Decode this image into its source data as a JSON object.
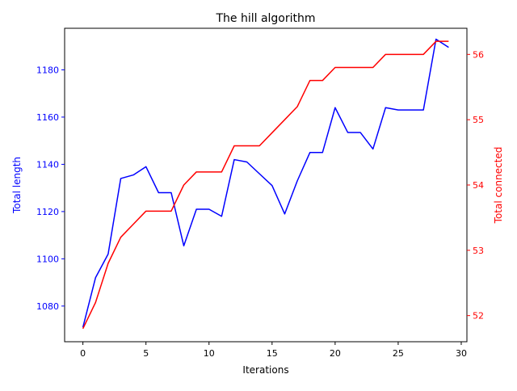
{
  "chart_data": {
    "type": "line",
    "title": "The hill algorithm",
    "xlabel": "Iterations",
    "ylabel_left": "Total length",
    "ylabel_right": "Total connected",
    "xlim": [
      -1.45,
      30.45
    ],
    "ylim_left": [
      1064.9,
      1197.6
    ],
    "ylim_right": [
      51.6,
      56.4
    ],
    "x_ticks": [
      0,
      5,
      10,
      15,
      20,
      25,
      30
    ],
    "y_left_ticks": [
      1080,
      1100,
      1120,
      1140,
      1160,
      1180
    ],
    "y_right_ticks": [
      52,
      53,
      54,
      55,
      56
    ],
    "grid": false,
    "x": [
      0,
      1,
      2,
      3,
      4,
      5,
      6,
      7,
      8,
      9,
      10,
      11,
      12,
      13,
      14,
      15,
      16,
      17,
      18,
      19,
      20,
      21,
      22,
      23,
      24,
      25,
      26,
      27,
      28,
      29
    ],
    "series": [
      {
        "axis": "left",
        "color": "#0000ff",
        "values": [
          1071,
          1092,
          1102,
          1134,
          1135.5,
          1139,
          1128,
          1128,
          1105.5,
          1121,
          1121,
          1118,
          1142,
          1141,
          1136,
          1131,
          1119,
          1133,
          1145,
          1145,
          1164,
          1153.5,
          1153.5,
          1146.5,
          1164,
          1163,
          1163,
          1163,
          1193,
          1189.5
        ]
      },
      {
        "axis": "right",
        "color": "#ff0000",
        "values": [
          51.8,
          52.2,
          52.8,
          53.2,
          53.4,
          53.6,
          53.6,
          53.6,
          54.0,
          54.2,
          54.2,
          54.2,
          54.6,
          54.6,
          54.6,
          54.8,
          55.0,
          55.2,
          55.6,
          55.6,
          55.8,
          55.8,
          55.8,
          55.8,
          56.0,
          56.0,
          56.0,
          56.0,
          56.2,
          56.2
        ]
      }
    ]
  }
}
